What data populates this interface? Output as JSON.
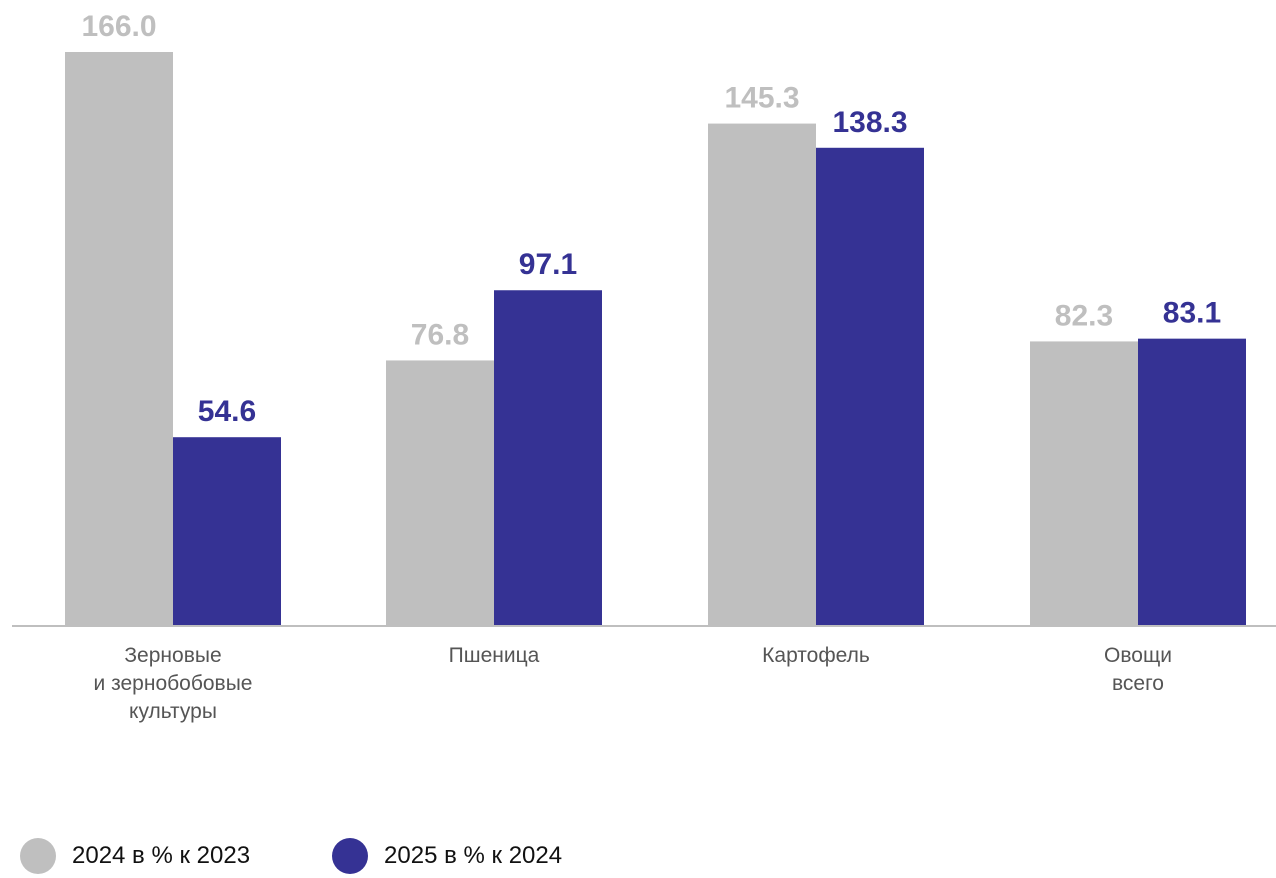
{
  "chart_data": {
    "type": "bar",
    "categories": [
      [
        "Зерновые",
        "и зернобобовые",
        "культуры"
      ],
      [
        "Пшеница"
      ],
      [
        "Картофель"
      ],
      [
        "Овощи",
        "всего"
      ]
    ],
    "series": [
      {
        "name": "2024 в % к 2023",
        "color": "#bfbfbf",
        "values": [
          166.0,
          76.8,
          145.3,
          82.3
        ],
        "labels": [
          "166.0",
          "76.8",
          "145.3",
          "82.3"
        ]
      },
      {
        "name": "2025 в % к 2024",
        "color": "#353294",
        "values": [
          54.6,
          97.1,
          138.3,
          83.1
        ],
        "labels": [
          "54.6",
          "97.1",
          "138.3",
          "83.1"
        ]
      }
    ],
    "ylim": [
      0,
      166.0
    ],
    "grid": false,
    "legend_position": "bottom-left",
    "axis_color": "#bfbfbf"
  }
}
